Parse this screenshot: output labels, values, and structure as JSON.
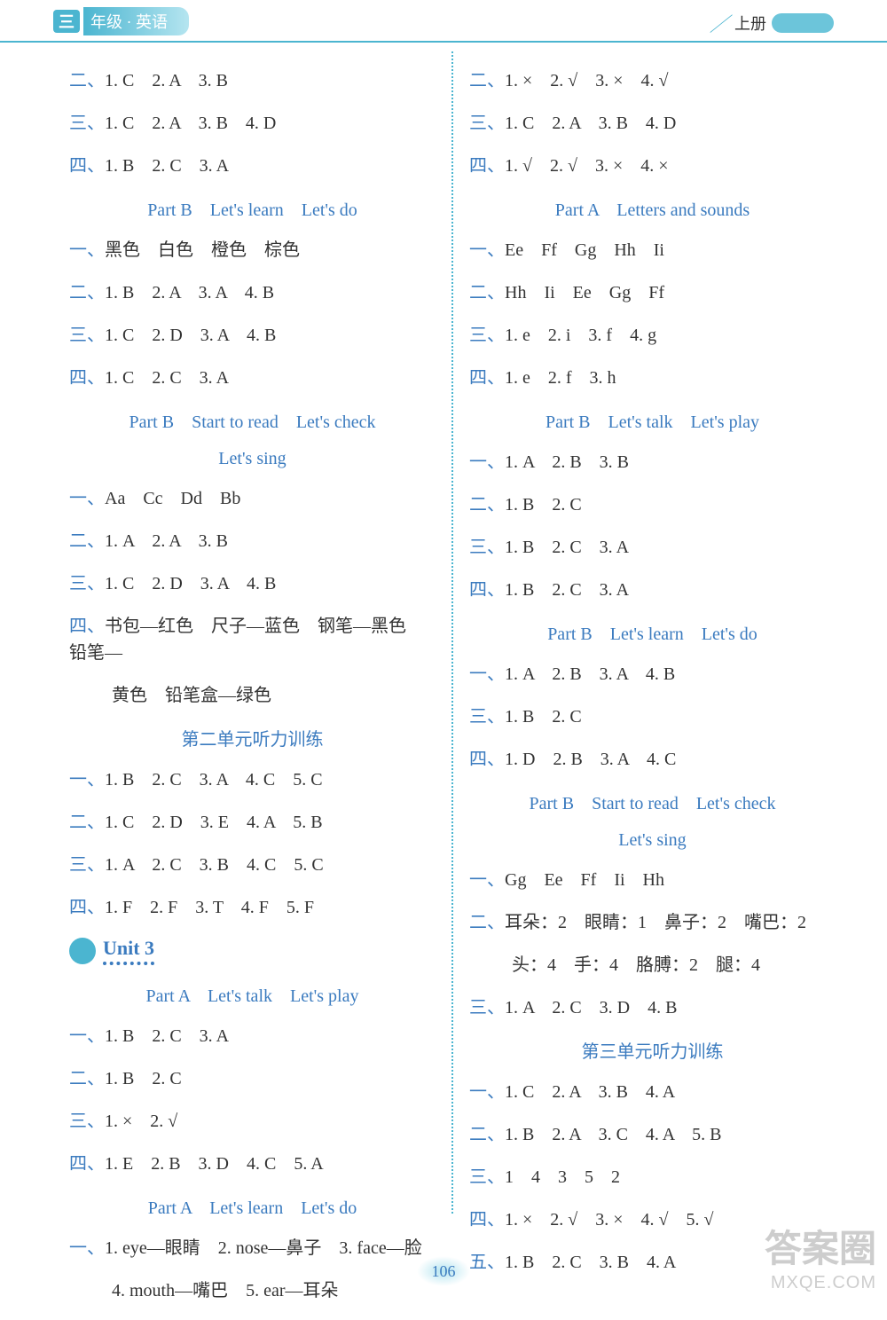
{
  "header": {
    "badge": "三",
    "title": "年级 · 英语",
    "vol": "上册"
  },
  "pageNumber": "106",
  "watermark": {
    "line1": "答案圈",
    "line2": "MXQE.COM"
  },
  "left": {
    "l1": {
      "label": "二、",
      "text": "1. C　2. A　3. B"
    },
    "l2": {
      "label": "三、",
      "text": "1. C　2. A　3. B　4. D"
    },
    "l3": {
      "label": "四、",
      "text": "1. B　2. C　3. A"
    },
    "s1": "Part B　Let's learn　Let's do",
    "l4": {
      "label": "一、",
      "text": "黑色　白色　橙色　棕色"
    },
    "l5": {
      "label": "二、",
      "text": "1. B　2. A　3. A　4. B"
    },
    "l6": {
      "label": "三、",
      "text": "1. C　2. D　3. A　4. B"
    },
    "l7": {
      "label": "四、",
      "text": "1. C　2. C　3. A"
    },
    "s2": "Part B　Start to read　Let's check",
    "s2b": "Let's sing",
    "l8": {
      "label": "一、",
      "text": "Aa　Cc　Dd　Bb"
    },
    "l9": {
      "label": "二、",
      "text": "1. A　2. A　3. B"
    },
    "l10": {
      "label": "三、",
      "text": "1. C　2. D　3. A　4. B"
    },
    "l11": {
      "label": "四、",
      "text": "书包—红色　尺子—蓝色　钢笔—黑色　铅笔—"
    },
    "l11b": "黄色　铅笔盒—绿色",
    "s3": "第二单元听力训练",
    "l12": {
      "label": "一、",
      "text": "1. B　2. C　3. A　4. C　5. C"
    },
    "l13": {
      "label": "二、",
      "text": "1. C　2. D　3. E　4. A　5. B"
    },
    "l14": {
      "label": "三、",
      "text": "1. A　2. C　3. B　4. C　5. C"
    },
    "l15": {
      "label": "四、",
      "text": "1. F　2. F　3. T　4. F　5. F"
    },
    "unit": "Unit 3",
    "s4": "Part A　Let's talk　Let's play",
    "l16": {
      "label": "一、",
      "text": "1. B　2. C　3. A"
    },
    "l17": {
      "label": "二、",
      "text": "1. B　2. C"
    },
    "l18": {
      "label": "三、",
      "text": "1. ×　2. √"
    },
    "l19": {
      "label": "四、",
      "text": "1. E　2. B　3. D　4. C　5. A"
    },
    "s5": "Part A　Let's learn　Let's do",
    "l20": {
      "label": "一、",
      "text": "1. eye—眼睛　2. nose—鼻子　3. face—脸"
    },
    "l20b": "4. mouth—嘴巴　5. ear—耳朵"
  },
  "right": {
    "r1": {
      "label": "二、",
      "text": "1. ×　2. √　3. ×　4. √"
    },
    "r2": {
      "label": "三、",
      "text": "1. C　2. A　3. B　4. D"
    },
    "r3": {
      "label": "四、",
      "text": "1. √　2. √　3. ×　4. ×"
    },
    "s1": "Part A　Letters and sounds",
    "r4": {
      "label": "一、",
      "text": "Ee　Ff　Gg　Hh　Ii"
    },
    "r5": {
      "label": "二、",
      "text": "Hh　Ii　Ee　Gg　Ff"
    },
    "r6": {
      "label": "三、",
      "text": "1. e　2. i　3. f　4. g"
    },
    "r7": {
      "label": "四、",
      "text": "1. e　2. f　3. h"
    },
    "s2": "Part B　Let's talk　Let's play",
    "r8": {
      "label": "一、",
      "text": "1. A　2. B　3. B"
    },
    "r9": {
      "label": "二、",
      "text": "1. B　2. C"
    },
    "r10": {
      "label": "三、",
      "text": "1. B　2. C　3. A"
    },
    "r11": {
      "label": "四、",
      "text": "1. B　2. C　3. A"
    },
    "s3": "Part B　Let's learn　Let's do",
    "r12": {
      "label": "一、",
      "text": "1. A　2. B　3. A　4. B"
    },
    "r13": {
      "label": "三、",
      "text": "1. B　2. C"
    },
    "r14": {
      "label": "四、",
      "text": "1. D　2. B　3. A　4. C"
    },
    "s4": "Part B　Start to read　Let's check",
    "s4b": "Let's sing",
    "r15": {
      "label": "一、",
      "text": "Gg　Ee　Ff　Ii　Hh"
    },
    "r16": {
      "label": "二、",
      "text": "耳朵：2　眼睛：1　鼻子：2　嘴巴：2"
    },
    "r16b": "头：4　手：4　胳膊：2　腿：4",
    "r17": {
      "label": "三、",
      "text": "1. A　2. C　3. D　4. B"
    },
    "s5": "第三单元听力训练",
    "r18": {
      "label": "一、",
      "text": "1. C　2. A　3. B　4. A"
    },
    "r19": {
      "label": "二、",
      "text": "1. B　2. A　3. C　4. A　5. B"
    },
    "r20": {
      "label": "三、",
      "text": "1　4　3　5　2"
    },
    "r21": {
      "label": "四、",
      "text": "1. ×　2. √　3. ×　4. √　5. √"
    },
    "r22": {
      "label": "五、",
      "text": "1. B　2. C　3. B　4. A"
    }
  }
}
